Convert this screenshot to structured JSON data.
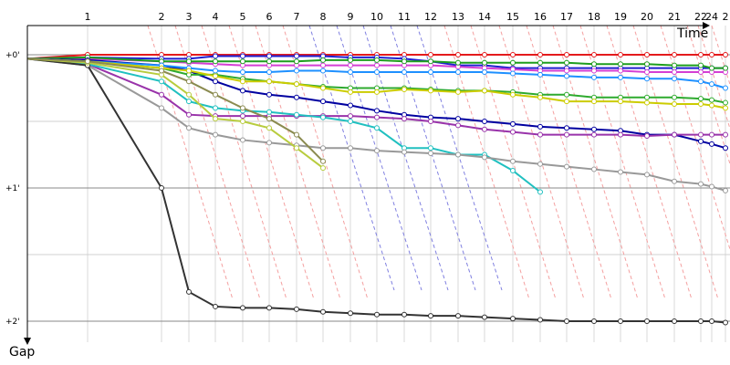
{
  "chart_data": {
    "type": "line",
    "xlabel": "Time",
    "ylabel": "Gap",
    "x_ticks": [
      "1",
      "2",
      "3",
      "4",
      "5",
      "6",
      "7",
      "8",
      "9",
      "10",
      "11",
      "12",
      "13",
      "14",
      "15",
      "16",
      "17",
      "18",
      "19",
      "20",
      "21",
      "22",
      "24",
      "2"
    ],
    "y_ticks": [
      "+0'",
      "+1'",
      "+2'"
    ],
    "ylim_minutes": [
      -0.05,
      2.1
    ],
    "y_inverted": true,
    "grid": true,
    "series": [
      {
        "color": "#e41a1c",
        "values": [
          0.0,
          0.0,
          0.0,
          0.0,
          0.0,
          0.0,
          0.0,
          0.0,
          0.0,
          0.0,
          0.0,
          0.0,
          0.0,
          0.0,
          0.0,
          0.0,
          0.0,
          0.0,
          0.0,
          0.0,
          0.0,
          0.0,
          0.0,
          0.0
        ]
      },
      {
        "color": "#1f1fcf",
        "values": [
          0.02,
          0.03,
          0.03,
          0.01,
          0.01,
          0.01,
          0.01,
          0.01,
          0.02,
          0.02,
          0.03,
          0.05,
          0.08,
          0.08,
          0.1,
          0.1,
          0.1,
          0.1,
          0.1,
          0.1,
          0.1,
          0.1,
          0.1,
          0.1
        ]
      },
      {
        "color": "#d43fd4",
        "values": [
          0.03,
          0.05,
          0.06,
          0.07,
          0.08,
          0.08,
          0.08,
          0.08,
          0.08,
          0.08,
          0.08,
          0.08,
          0.09,
          0.1,
          0.11,
          0.12,
          0.12,
          0.12,
          0.12,
          0.13,
          0.13,
          0.13,
          0.13,
          0.13
        ]
      },
      {
        "color": "#1e9e1e",
        "values": [
          0.02,
          0.05,
          0.05,
          0.05,
          0.05,
          0.05,
          0.05,
          0.04,
          0.04,
          0.04,
          0.05,
          0.05,
          0.06,
          0.06,
          0.06,
          0.06,
          0.06,
          0.07,
          0.07,
          0.07,
          0.08,
          0.08,
          0.1,
          0.1
        ]
      },
      {
        "color": "#0000a0",
        "values": [
          0.04,
          0.08,
          0.12,
          0.2,
          0.27,
          0.3,
          0.32,
          0.35,
          0.38,
          0.42,
          0.45,
          0.47,
          0.48,
          0.5,
          0.52,
          0.54,
          0.55,
          0.56,
          0.57,
          0.6,
          0.6,
          0.65,
          0.67,
          0.7
        ]
      },
      {
        "color": "#9933aa",
        "values": [
          0.07,
          0.3,
          0.45,
          0.46,
          0.46,
          0.46,
          0.46,
          0.46,
          0.46,
          0.47,
          0.48,
          0.5,
          0.53,
          0.56,
          0.58,
          0.6,
          0.6,
          0.6,
          0.6,
          0.61,
          0.6,
          0.6,
          0.6,
          0.6
        ]
      },
      {
        "color": "#2eaa2e",
        "values": [
          0.05,
          0.1,
          0.15,
          0.15,
          0.18,
          0.2,
          0.22,
          0.24,
          0.25,
          0.25,
          0.25,
          0.26,
          0.27,
          0.27,
          0.28,
          0.3,
          0.3,
          0.32,
          0.32,
          0.32,
          0.32,
          0.33,
          0.34,
          0.36
        ]
      },
      {
        "color": "#1e90ff",
        "values": [
          0.05,
          0.08,
          0.1,
          0.12,
          0.13,
          0.13,
          0.12,
          0.12,
          0.13,
          0.13,
          0.13,
          0.13,
          0.13,
          0.13,
          0.14,
          0.15,
          0.16,
          0.17,
          0.17,
          0.18,
          0.18,
          0.2,
          0.22,
          0.25
        ]
      },
      {
        "color": "#cccc00",
        "values": [
          0.05,
          0.1,
          0.12,
          0.16,
          0.2,
          0.2,
          0.22,
          0.25,
          0.28,
          0.28,
          0.26,
          0.27,
          0.28,
          0.27,
          0.3,
          0.32,
          0.35,
          0.35,
          0.35,
          0.36,
          0.37,
          0.37,
          0.38,
          0.4
        ]
      },
      {
        "color": "#20c0c0",
        "values": [
          0.07,
          0.2,
          0.35,
          0.4,
          0.42,
          0.43,
          0.45,
          0.47,
          0.5,
          0.55,
          0.7,
          0.7,
          0.75,
          0.75,
          0.87,
          1.03,
          null,
          null,
          null,
          null,
          null,
          null,
          null,
          null
        ]
      },
      {
        "color": "#999999",
        "values": [
          0.08,
          0.4,
          0.55,
          0.6,
          0.64,
          0.66,
          0.68,
          0.7,
          0.7,
          0.72,
          0.73,
          0.74,
          0.75,
          0.77,
          0.8,
          0.82,
          0.84,
          0.86,
          0.88,
          0.9,
          0.95,
          0.97,
          0.99,
          1.02
        ]
      },
      {
        "color": "#333333",
        "values": [
          0.08,
          1.0,
          1.78,
          1.89,
          1.9,
          1.9,
          1.91,
          1.93,
          1.94,
          1.95,
          1.95,
          1.96,
          1.96,
          1.97,
          1.98,
          1.99,
          2.0,
          2.0,
          2.0,
          2.0,
          2.0,
          2.0,
          2.0,
          2.01
        ]
      },
      {
        "color": "#b8cc3e",
        "values": [
          0.06,
          0.15,
          0.3,
          0.48,
          0.5,
          0.55,
          0.7,
          0.85,
          null,
          null,
          null,
          null,
          null,
          null,
          null,
          null,
          null,
          null,
          null,
          null,
          null,
          null,
          null,
          null
        ]
      },
      {
        "color": "#8b8b50",
        "values": [
          0.05,
          0.12,
          0.2,
          0.3,
          0.4,
          0.48,
          0.6,
          0.8,
          null,
          null,
          null,
          null,
          null,
          null,
          null,
          null,
          null,
          null,
          null,
          null,
          null,
          null,
          null,
          null
        ]
      }
    ],
    "x_positions_hint": "category"
  }
}
